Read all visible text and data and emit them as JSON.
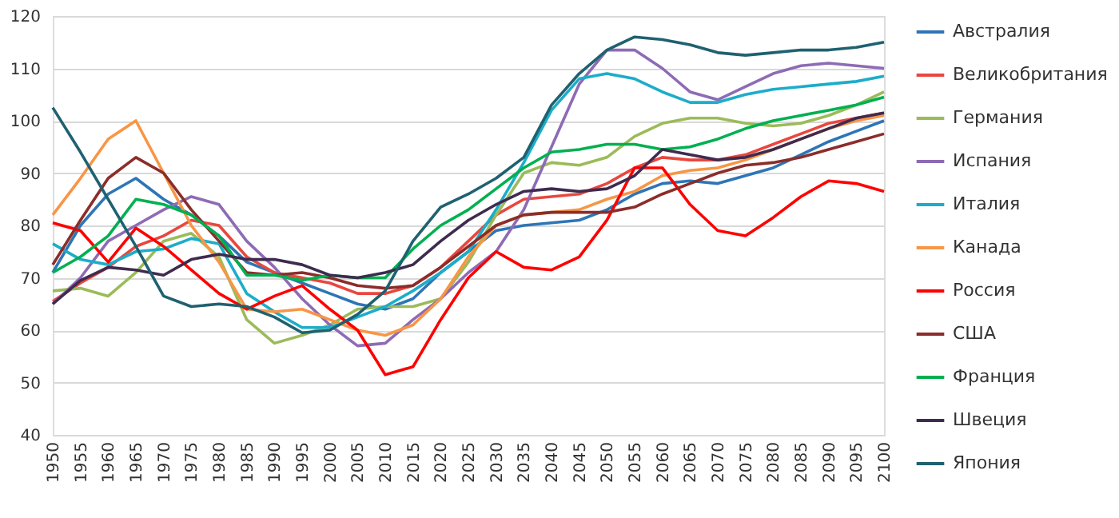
{
  "chart_data": {
    "type": "line",
    "categories": [
      "1950",
      "1955",
      "1960",
      "1965",
      "1970",
      "1975",
      "1980",
      "1985",
      "1990",
      "1995",
      "2000",
      "2005",
      "2010",
      "2015",
      "2020",
      "2025",
      "2030",
      "2035",
      "2040",
      "2045",
      "2050",
      "2055",
      "2060",
      "2065",
      "2070",
      "2075",
      "2080",
      "2085",
      "2090",
      "2095",
      "2100"
    ],
    "ylim": [
      40,
      120
    ],
    "yticks": [
      40,
      50,
      60,
      70,
      80,
      90,
      100,
      110,
      120
    ],
    "grid": "y",
    "legend": "right",
    "marker": "none",
    "line_style": "solid",
    "series": [
      {
        "name": "Австралия",
        "color": "#2e75b6",
        "values": [
          71,
          80,
          86,
          89,
          85,
          82,
          78,
          73,
          71,
          69,
          67,
          65,
          64,
          66,
          71,
          75,
          79,
          80,
          80.5,
          81,
          83,
          86,
          88,
          88.5,
          88,
          89.5,
          91,
          93.5,
          96,
          98,
          100
        ]
      },
      {
        "name": "Великобритания",
        "color": "#e8473f",
        "values": [
          65.5,
          69,
          72,
          76,
          78,
          81,
          80,
          74,
          71,
          70,
          69,
          67,
          67,
          68.5,
          72,
          77,
          82,
          85,
          85.5,
          86,
          88,
          91,
          93,
          92.5,
          92.5,
          93.5,
          95.5,
          97.5,
          99.5,
          100.5,
          101.5
        ]
      },
      {
        "name": "Германия",
        "color": "#9bbb59",
        "values": [
          67.5,
          68,
          66.5,
          71,
          77,
          78.5,
          74,
          62,
          57.5,
          59,
          61,
          64,
          64.5,
          64.5,
          66,
          73,
          82,
          90,
          92,
          91.5,
          93,
          97,
          99.5,
          100.5,
          100.5,
          99.5,
          99,
          99.5,
          101,
          103,
          105.5
        ]
      },
      {
        "name": "Испания",
        "color": "#8e6bb5",
        "values": [
          65,
          70,
          77,
          80,
          83,
          85.5,
          84,
          77,
          72,
          66,
          61,
          57,
          57.5,
          62,
          66,
          71,
          75,
          83,
          95,
          107,
          113.5,
          113.5,
          110,
          105.5,
          104,
          106.5,
          109,
          110.5,
          111,
          110.5,
          110
        ]
      },
      {
        "name": "Италия",
        "color": "#1cadc9",
        "values": [
          76.5,
          73.5,
          72.5,
          75,
          75.5,
          77.5,
          76.5,
          67,
          63.5,
          60.5,
          60.5,
          62.5,
          64.5,
          67.5,
          71,
          75,
          83,
          92,
          102,
          108,
          109,
          108,
          105.5,
          103.5,
          103.5,
          105,
          106,
          106.5,
          107,
          107.5,
          108.5
        ]
      },
      {
        "name": "Канада",
        "color": "#f79646",
        "values": [
          82,
          89,
          96.5,
          100,
          90,
          80,
          73,
          64,
          63.5,
          64,
          62,
          60,
          59,
          61,
          66,
          74,
          80,
          82,
          82.5,
          83,
          85,
          86.5,
          89.5,
          90.5,
          91,
          92.5,
          94.5,
          96.5,
          98.5,
          100,
          101
        ]
      },
      {
        "name": "Россия",
        "color": "#ff0000",
        "values": [
          80.5,
          79,
          73,
          79.5,
          76,
          71.5,
          67,
          64,
          66.5,
          68.5,
          64,
          60,
          51.5,
          53,
          62,
          70,
          75,
          72,
          71.5,
          74,
          81,
          91,
          91,
          84,
          79,
          78,
          81.5,
          85.5,
          88.5,
          88,
          86.5
        ]
      },
      {
        "name": "США",
        "color": "#8b2d2a",
        "values": [
          72.5,
          81,
          89,
          93,
          90,
          83,
          77,
          71,
          70.5,
          71,
          70,
          68.5,
          68,
          68.5,
          72,
          76,
          80,
          82,
          82.5,
          82.5,
          82.5,
          83.5,
          86,
          88,
          90,
          91.5,
          92,
          93,
          94.5,
          96,
          97.5
        ]
      },
      {
        "name": "Франция",
        "color": "#00b050",
        "values": [
          71,
          74,
          78,
          85,
          84,
          82,
          78,
          70.5,
          70.5,
          69.5,
          70.5,
          70,
          70,
          75.5,
          80,
          83,
          87,
          91,
          94,
          94.5,
          95.5,
          95.5,
          94.5,
          95,
          96.5,
          98.5,
          100,
          101,
          102,
          103,
          104.5
        ]
      },
      {
        "name": "Швеция",
        "color": "#3f2b4f",
        "values": [
          65,
          69.5,
          72,
          71.5,
          70.5,
          73.5,
          74.5,
          73.5,
          73.5,
          72.5,
          70.5,
          70,
          71,
          72.5,
          77,
          81,
          84,
          86.5,
          87,
          86.5,
          87,
          89.5,
          94.5,
          93.5,
          92.5,
          93,
          94.5,
          96.5,
          98.5,
          100.5,
          101.5
        ]
      },
      {
        "name": "Япония",
        "color": "#1f6170",
        "values": [
          102.5,
          94,
          85,
          76,
          66.5,
          64.5,
          65,
          64.5,
          62.5,
          59.5,
          60,
          63,
          67.5,
          77,
          83.5,
          86,
          89,
          93,
          103,
          109,
          113.5,
          116,
          115.5,
          114.5,
          113,
          112.5,
          113,
          113.5,
          113.5,
          114,
          115
        ]
      }
    ]
  }
}
